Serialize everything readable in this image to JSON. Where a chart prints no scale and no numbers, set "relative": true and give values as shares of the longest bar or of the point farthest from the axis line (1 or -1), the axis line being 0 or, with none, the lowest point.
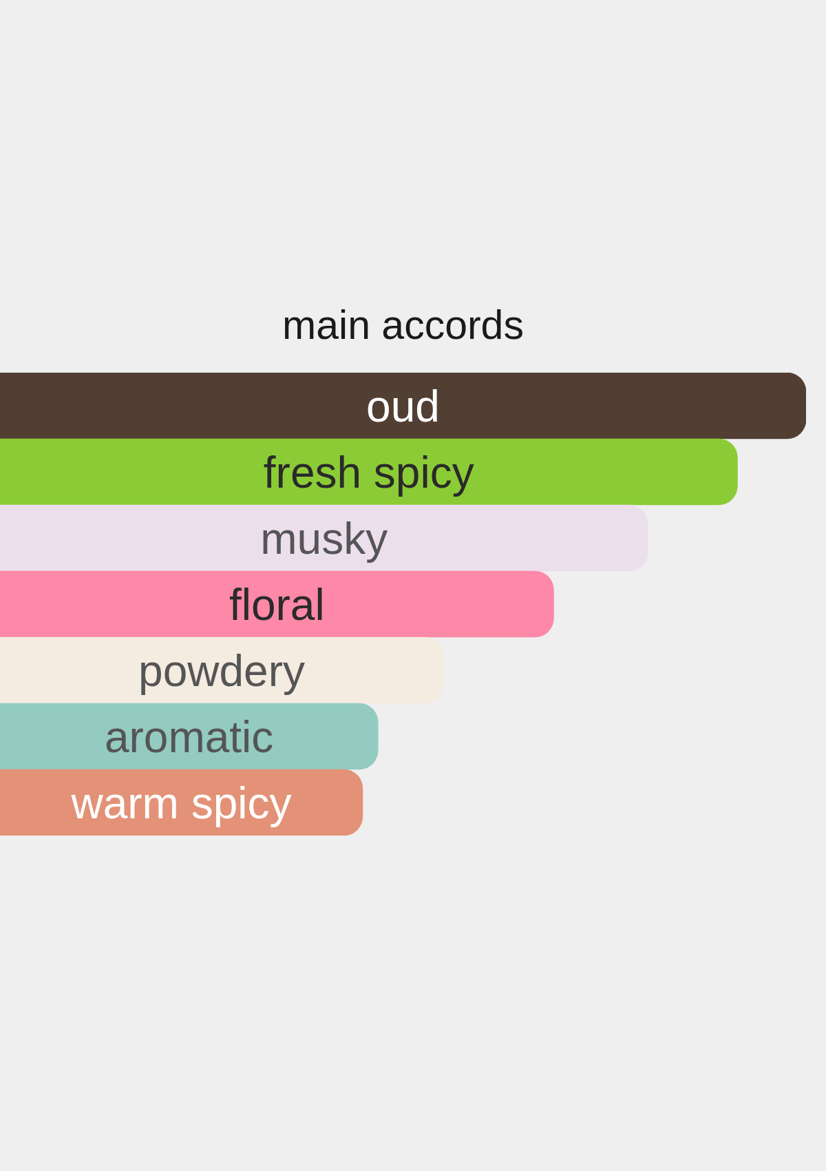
{
  "chart_data": {
    "type": "bar",
    "orientation": "horizontal",
    "relative": true,
    "title": "main accords",
    "categories": [
      "oud",
      "fresh spicy",
      "musky",
      "floral",
      "powdery",
      "aromatic",
      "warm spicy"
    ],
    "values": [
      1,
      0.915,
      0.804,
      0.687,
      0.55,
      0.469,
      0.45
    ],
    "colors": [
      "#523f34",
      "#8bcc36",
      "#ecdfec",
      "#fe88a8",
      "#f4ebe1",
      "#93cbc0",
      "#e39277"
    ]
  }
}
